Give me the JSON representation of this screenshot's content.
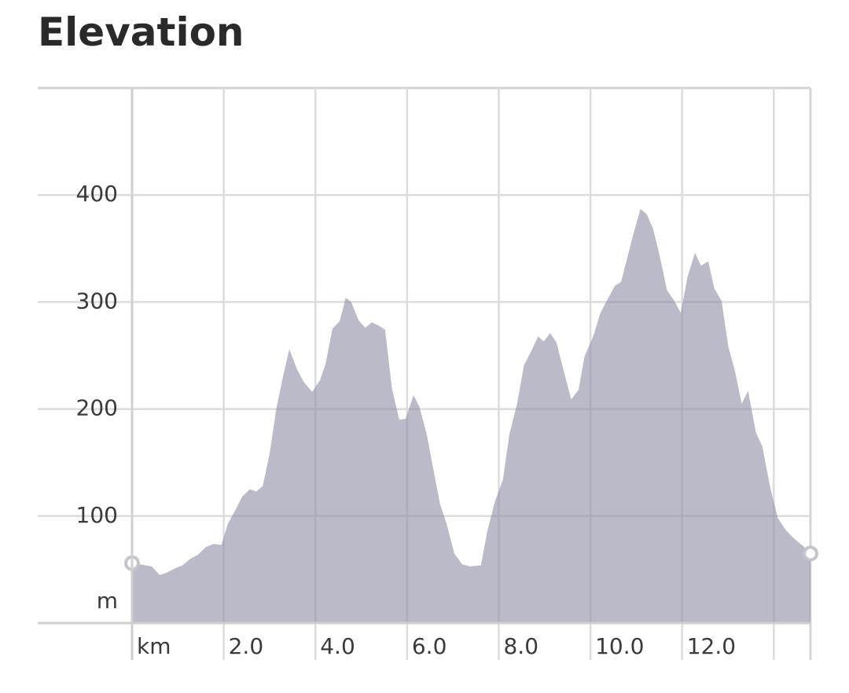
{
  "chart_data": {
    "type": "area",
    "title": "Elevation",
    "x_unit": "km",
    "y_unit": "m",
    "color": "#8c8ca5",
    "xlim": [
      0,
      14.8
    ],
    "ylim": [
      0,
      500
    ],
    "xticks": [
      {
        "value": 0,
        "label": null
      },
      {
        "value": 2,
        "label": "2.0"
      },
      {
        "value": 4,
        "label": "4.0"
      },
      {
        "value": 6,
        "label": "6.0"
      },
      {
        "value": 8,
        "label": "8.0"
      },
      {
        "value": 10,
        "label": "10.0"
      },
      {
        "value": 12,
        "label": "12.0"
      },
      {
        "value": 14,
        "label": null
      }
    ],
    "yticks": [
      100,
      200,
      300,
      400
    ],
    "grid": true,
    "x": [
      0,
      0.17,
      0.29,
      0.43,
      0.6,
      0.75,
      0.93,
      1.1,
      1.27,
      1.44,
      1.61,
      1.78,
      1.95,
      2.09,
      2.26,
      2.4,
      2.57,
      2.71,
      2.85,
      3.0,
      3.15,
      3.29,
      3.43,
      3.6,
      3.75,
      3.93,
      4.1,
      4.22,
      4.37,
      4.53,
      4.66,
      4.78,
      4.94,
      5.09,
      5.23,
      5.38,
      5.52,
      5.67,
      5.83,
      5.97,
      6.14,
      6.27,
      6.43,
      6.58,
      6.72,
      6.86,
      7.03,
      7.2,
      7.37,
      7.61,
      7.75,
      7.92,
      8.09,
      8.23,
      8.4,
      8.55,
      8.73,
      8.86,
      8.98,
      9.12,
      9.26,
      9.39,
      9.58,
      9.74,
      9.87,
      10.06,
      10.22,
      10.39,
      10.53,
      10.67,
      10.8,
      10.94,
      11.09,
      11.23,
      11.37,
      11.5,
      11.67,
      11.83,
      11.97,
      12.12,
      12.28,
      12.41,
      12.57,
      12.7,
      12.86,
      13.01,
      13.15,
      13.3,
      13.44,
      13.61,
      13.75,
      13.92,
      14.09,
      14.26,
      14.44,
      14.64,
      14.8
    ],
    "values": [
      56,
      55,
      54,
      53,
      45,
      47,
      51,
      54,
      60,
      64,
      71,
      74,
      73,
      93,
      106,
      118,
      125,
      123,
      128,
      158,
      201,
      230,
      256,
      237,
      225,
      216,
      227,
      242,
      275,
      282,
      304,
      300,
      283,
      276,
      281,
      278,
      274,
      219,
      190,
      191,
      213,
      202,
      176,
      142,
      111,
      93,
      65,
      55,
      53,
      54,
      86,
      114,
      134,
      176,
      205,
      241,
      256,
      268,
      263,
      271,
      262,
      240,
      209,
      218,
      249,
      268,
      290,
      304,
      315,
      319,
      341,
      364,
      387,
      382,
      368,
      345,
      311,
      301,
      290,
      324,
      346,
      334,
      338,
      313,
      301,
      258,
      236,
      205,
      217,
      178,
      165,
      127,
      98,
      87,
      79,
      72,
      65
    ]
  }
}
